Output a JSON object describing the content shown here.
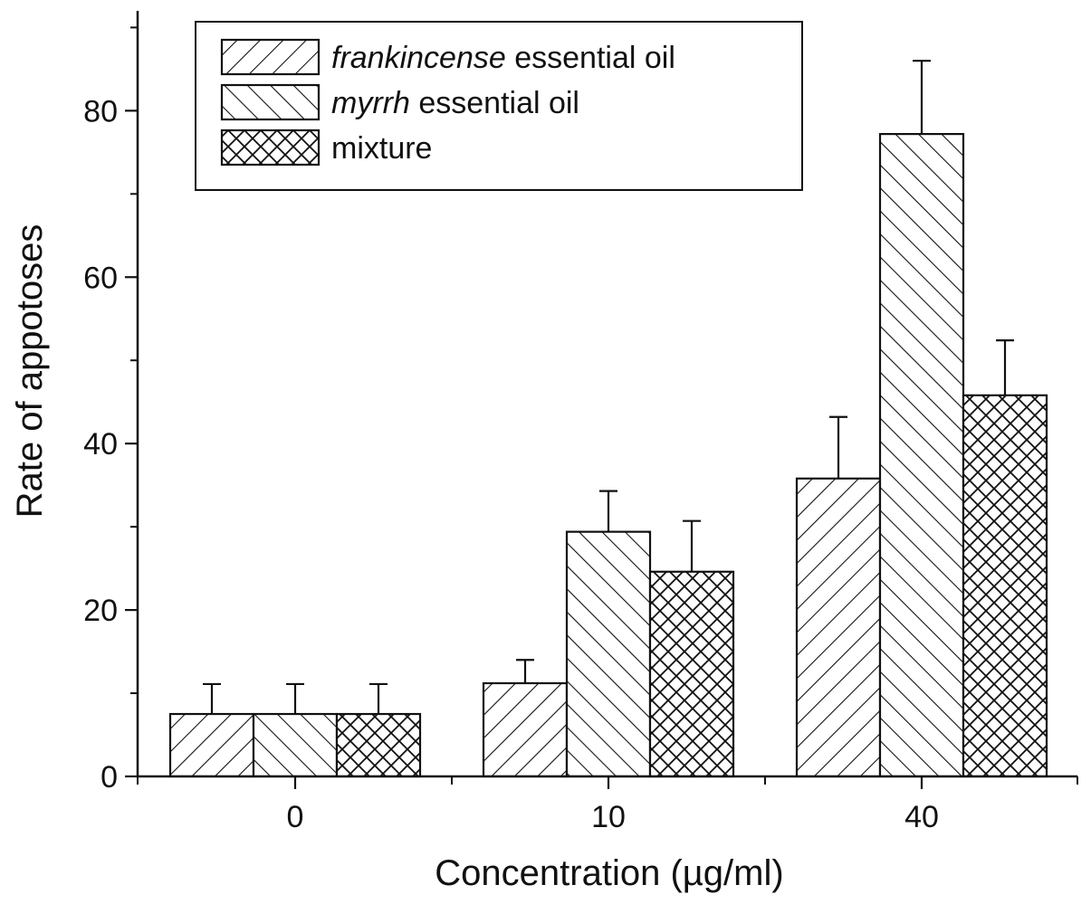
{
  "chart_data": {
    "type": "bar",
    "categories": [
      "0",
      "10",
      "40"
    ],
    "series": [
      {
        "name_italic": "frankincense",
        "name_rest": " essential oil",
        "pattern": "forward",
        "values": [
          7.5,
          11.2,
          35.8
        ],
        "errors": [
          3.6,
          2.8,
          7.4
        ]
      },
      {
        "name_italic": "myrrh",
        "name_rest": " essential oil",
        "pattern": "back",
        "values": [
          7.5,
          29.4,
          77.2
        ],
        "errors": [
          3.6,
          4.9,
          8.8
        ]
      },
      {
        "name_italic": "",
        "name_rest": "mixture",
        "pattern": "cross",
        "values": [
          7.5,
          24.6,
          45.8
        ],
        "errors": [
          3.6,
          6.1,
          6.6
        ]
      }
    ],
    "xlabel": "Concentration (µg/ml)",
    "ylabel": "Rate of appotoses",
    "ylim": [
      0,
      92
    ],
    "yticks": [
      0,
      20,
      40,
      60,
      80
    ],
    "yminor": [
      10,
      30,
      50,
      70,
      90
    ],
    "legend_position": "top-left",
    "grid": false,
    "bar_fill": "#ffffff",
    "line_color": "#111111"
  }
}
